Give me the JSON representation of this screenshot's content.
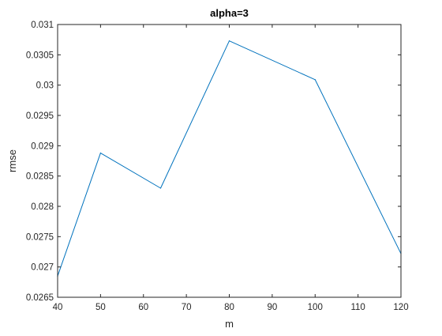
{
  "chart_data": {
    "type": "line",
    "title": "alpha=3",
    "xlabel": "m",
    "ylabel": "rmse",
    "xlim": [
      40,
      120
    ],
    "ylim": [
      0.0265,
      0.031
    ],
    "xticks": [
      40,
      50,
      60,
      70,
      80,
      90,
      100,
      110,
      120
    ],
    "xtick_labels": [
      "40",
      "50",
      "60",
      "70",
      "80",
      "90",
      "100",
      "110",
      "120"
    ],
    "yticks": [
      0.0265,
      0.027,
      0.0275,
      0.028,
      0.0285,
      0.029,
      0.0295,
      0.03,
      0.0305,
      0.031
    ],
    "ytick_labels": [
      "0.0265",
      "0.027",
      "0.0275",
      "0.028",
      "0.0285",
      "0.029",
      "0.0295",
      "0.03",
      "0.0305",
      "0.031"
    ],
    "grid": false,
    "series": [
      {
        "color": "#0072BD",
        "x": [
          40,
          50,
          64,
          80,
          100,
          120
        ],
        "y": [
          0.02685,
          0.02888,
          0.0283,
          0.03073,
          0.03009,
          0.02722
        ]
      }
    ]
  }
}
